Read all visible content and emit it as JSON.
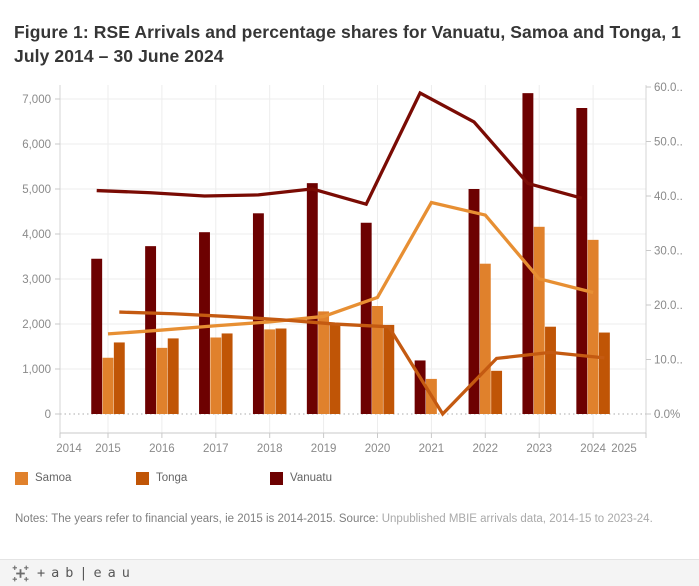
{
  "title": "Figure 1: RSE Arrivals and percentage shares for Vanuatu, Samoa and Tonga, 1 July 2014 – 30 June 2024",
  "legend": {
    "items": [
      {
        "label": "Samoa",
        "color": "#e0812c"
      },
      {
        "label": "Tonga",
        "color": "#c05506"
      },
      {
        "label": "Vanuatu",
        "color": "#6d0101"
      }
    ]
  },
  "notes": {
    "dark": "Notes: The years refer to financial years, ie 2015 is 2014-2015. Source: ",
    "light": "Unpublished MBIE arrivals data, 2014-15 to 2023-24."
  },
  "footer": {
    "brand": "+ab|eau"
  },
  "chart_data": {
    "type": "bar",
    "subtype": "dual-axis combo: grouped bars (arrivals, left axis) + lines (percentage share, right axis)",
    "categories": [
      "2015",
      "2016",
      "2017",
      "2018",
      "2019",
      "2020",
      "2021",
      "2022",
      "2023",
      "2024"
    ],
    "x_tick_labels": [
      "2014",
      "2015",
      "2016",
      "2017",
      "2018",
      "2019",
      "2020",
      "2021",
      "2022",
      "2023",
      "2024",
      "2025"
    ],
    "group_order": [
      "Vanuatu",
      "Samoa",
      "Tonga"
    ],
    "bar_series": [
      {
        "name": "Vanuatu",
        "axis": "left",
        "color": "#6d0101",
        "values": [
          3450,
          3730,
          4040,
          4460,
          5130,
          4250,
          1190,
          5000,
          7130,
          6800
        ]
      },
      {
        "name": "Samoa",
        "axis": "left",
        "color": "#e0812c",
        "values": [
          1250,
          1470,
          1700,
          1880,
          2280,
          2400,
          780,
          3340,
          4160,
          3870
        ]
      },
      {
        "name": "Tonga",
        "axis": "left",
        "color": "#c05506",
        "values": [
          1590,
          1680,
          1790,
          1900,
          2010,
          1980,
          0,
          960,
          1940,
          1810
        ]
      }
    ],
    "line_series": [
      {
        "name": "Samoa",
        "axis": "right",
        "color": "#e78f33",
        "values": [
          14.7,
          15.4,
          16.2,
          16.9,
          17.9,
          21.4,
          38.8,
          36.5,
          24.8,
          22.3
        ]
      },
      {
        "name": "Tonga",
        "axis": "right",
        "color": "#c45a11",
        "values": [
          18.7,
          18.4,
          17.9,
          17.3,
          16.5,
          16.0,
          0.0,
          10.2,
          11.3,
          10.3
        ]
      },
      {
        "name": "Vanuatu",
        "axis": "right",
        "color": "#7a0b04",
        "values": [
          41.0,
          40.6,
          40.0,
          40.2,
          41.3,
          38.5,
          58.9,
          53.6,
          42.3,
          39.6
        ]
      }
    ],
    "left_axis": {
      "tick_labels": [
        "0",
        "1,000",
        "2,000",
        "3,000",
        "4,000",
        "5,000",
        "6,000",
        "7,000"
      ],
      "tick_values": [
        0,
        1000,
        2000,
        3000,
        4000,
        5000,
        6000,
        7000
      ],
      "min": 0,
      "max": 7000
    },
    "right_axis": {
      "tick_labels": [
        "0.0%",
        "10.0..",
        "20.0..",
        "30.0..",
        "40.0..",
        "50.0..",
        "60.0.."
      ],
      "tick_values": [
        0,
        10,
        20,
        30,
        40,
        50,
        60
      ],
      "min": 0,
      "max": 60
    },
    "grid": "horizontal lines at each 1,000; vertical line at each year; dotted zero line",
    "legend_position": "bottom"
  }
}
